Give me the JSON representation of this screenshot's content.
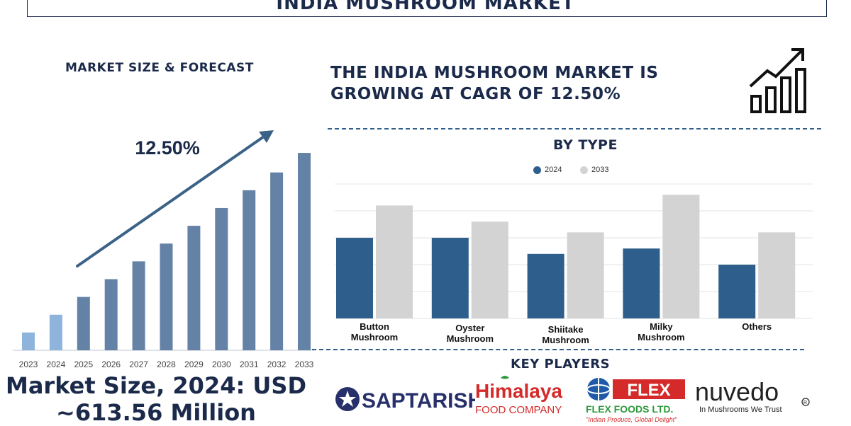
{
  "header": {
    "title": "INDIA MUSHROOM MARKET"
  },
  "forecast": {
    "title": "MARKET SIZE & FORECAST",
    "cagr_label": "12.50%",
    "market_size_line1": "Market Size, 2024: USD",
    "market_size_line2": "~613.56 Million"
  },
  "headline": {
    "line1": "THE INDIA MUSHROOM MARKET IS",
    "line2": "GROWING AT CAGR OF 12.50%"
  },
  "by_type": {
    "title": "BY TYPE",
    "legend": [
      "2024",
      "2033"
    ]
  },
  "key_players": {
    "title": "KEY PLAYERS",
    "logos": {
      "saptarishi": "SAPTARISHI",
      "himalaya_1": "Himalaya",
      "himalaya_2": "FOOD COMPANY",
      "flex_1": "FLEX",
      "flex_2": "FLEX FOODS LTD.",
      "flex_3": "\"Indian Produce, Global Delight\"",
      "nuvedo_1": "nuvedo",
      "nuvedo_2": "In Mushrooms We Trust"
    }
  },
  "colors": {
    "navy": "#1b2a4a",
    "bar_2024": "#2e5e8c",
    "bar_2033": "#d3d3d3",
    "forecast_bar_light": "#8fb4dc",
    "forecast_bar_dark": "#6482a6",
    "arrow": "#3b6287",
    "saptarishi": "#27306b",
    "himalaya_red": "#d42a2a",
    "flex_blue": "#1e5aa8",
    "flex_green": "#2e9a3c"
  },
  "chart_data": [
    {
      "type": "bar",
      "title": "MARKET SIZE & FORECAST",
      "categories": [
        "2023",
        "2024",
        "2025",
        "2026",
        "2027",
        "2028",
        "2029",
        "2030",
        "2031",
        "2032",
        "2033"
      ],
      "values": [
        1.0,
        2.0,
        3.0,
        4.0,
        5.0,
        6.0,
        7.0,
        8.0,
        9.0,
        10.0,
        11.1
      ],
      "ylim": [
        0,
        11.5
      ],
      "annotation": "12.50%",
      "grid": false
    },
    {
      "type": "bar",
      "title": "BY TYPE",
      "categories": [
        "Button Mushroom",
        "Oyster Mushroom",
        "Shiitake Mushroom",
        "Milky Mushroom",
        "Others"
      ],
      "series": [
        {
          "name": "2024",
          "values": [
            3.0,
            3.0,
            2.4,
            2.6,
            2.0
          ]
        },
        {
          "name": "2033",
          "values": [
            4.2,
            3.6,
            3.2,
            4.6,
            3.2
          ]
        }
      ],
      "ylim": [
        0,
        5
      ],
      "legend": "top",
      "grid": true
    }
  ]
}
